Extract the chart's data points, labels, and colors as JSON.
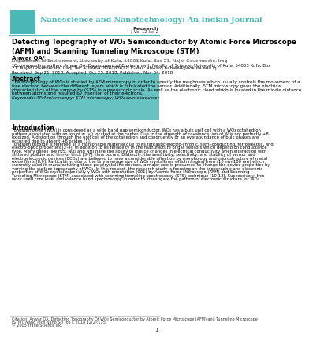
{
  "journal_title": "Nanoscience and Nanotechnology: An Indian Journal",
  "journal_title_color": "#4db8b8",
  "header_bg": "#ffffff",
  "logo_color": "#4db8b8",
  "section_label": "Research",
  "vol_info": "Vol 12 Iss 2",
  "article_title": "Detecting Topography of WO₃ Semiconductor by Atomic Force Microscope\n(AFM) and Scanning Tunneling Microscope (STM)",
  "author": "Anwar QA*",
  "affiliation": "Department of Environment, University of Kufa, 54003 Kufa, Box 21, Najaf Governorate, Iraq",
  "corresponding": "*Corresponding author: Anwar QA, Department of Environment, Faculty of Science, University of Kufa, 54003 Kufa, Box\n21, Najaf Governorate, Iraq, Tel: +009647826083627; E-Mail: anwarq.hameed@uokufa.edu.iq",
  "dates": "Received: Sep 21, 2018; Accepted: Oct 25, 2018; Published: Nov 04, 2018",
  "abstract_title": "Abstract",
  "abstract_text": "The morphology of WO₃ is studied by AFM microscopy in order to specify the roughness which usually controls the movement of a\nfree electron between the different layers which is fabricated the sensor. Additionally, STM microscopy gives the electrical\ncharacteristics of the sample by (STS) in a nanoscopic scale. As well as the electronic cloud which is located in the middle distance\nbetween atoms and resulted by insertion of their electrons.",
  "keywords": "Keywords: AFM microscopy; STM microscopy; WO₃ semiconductor",
  "abstract_bg": "#4db8b8",
  "intro_title": "Introduction",
  "intro_text": "Tungsten oxide (WO₃) is considered as a wide band gap semiconductor. WO₃ has a bulk unit cell with a WO₃ octahedron\npattern associated with an ion of w (vi) located at the center. Due to the strength of covalence, ion of W is not perfectly +8\noxidized. A distortion through the unit cell of the octahedron and congruently or an overabundance of bulk phases are\noccurred due to absent +8 oxides [1].\nTungsten trioxide is referred as a fashionable material due to its fantastic electro-chronic, semi-conducting, ferroelectric, and\nelectro-optic properties [2-4]. In addition to its reliability in the manufacture of gas sensors which depend on conductance\ntype. Many gases like H₂S, NO₂ and NH₃ have the ability to induce changes in electrical conductivity when interaction with\nsintered powder and thin or thick [3-7] films occurs. Distinctly, the sensitivity, selectivity, and stability of sensor and\nelectroelectronic devices (ECDs) are believed to have a considerable affection by morphology and microstructure of metal\noxide films [8,9]. Particularly, due to the tiny average size of WO₃ crystallines which ranging from (10 nm-100 nm) which\ncurrently used in manufacturing those polycrystalline devices, a major role is presumed to change the device properties by\nvarying the surface topography of WO₃. In this respect, the research study is focusing on the topographic and electronic\nproperties of WO₃ crystal especially γ-WO₃ with orientation (001) by Atomic Force Microscope (AFM) and Scanning\nTunneling Microscope (STM) associated with scanning tunneling spectroscopy (STS) technique [10-13]. Successively, this\nwork used core level and valence band spectroscopy in order to investigate the pattern of electronic structure for WO₃",
  "citation": "Citation: Anwar QA. Detecting Topography Of WO₃ Semiconductor by Atomic Force Microscope (AFM) and Tunneling Microscope\n(STM). Nano Tech Nano Sci Ind J. 2018 12(2):175\n© 2005 Trade Science Inc.",
  "page_num": "1",
  "divider_color": "#4db8b8",
  "text_color": "#000000",
  "bg_color": "#ffffff"
}
